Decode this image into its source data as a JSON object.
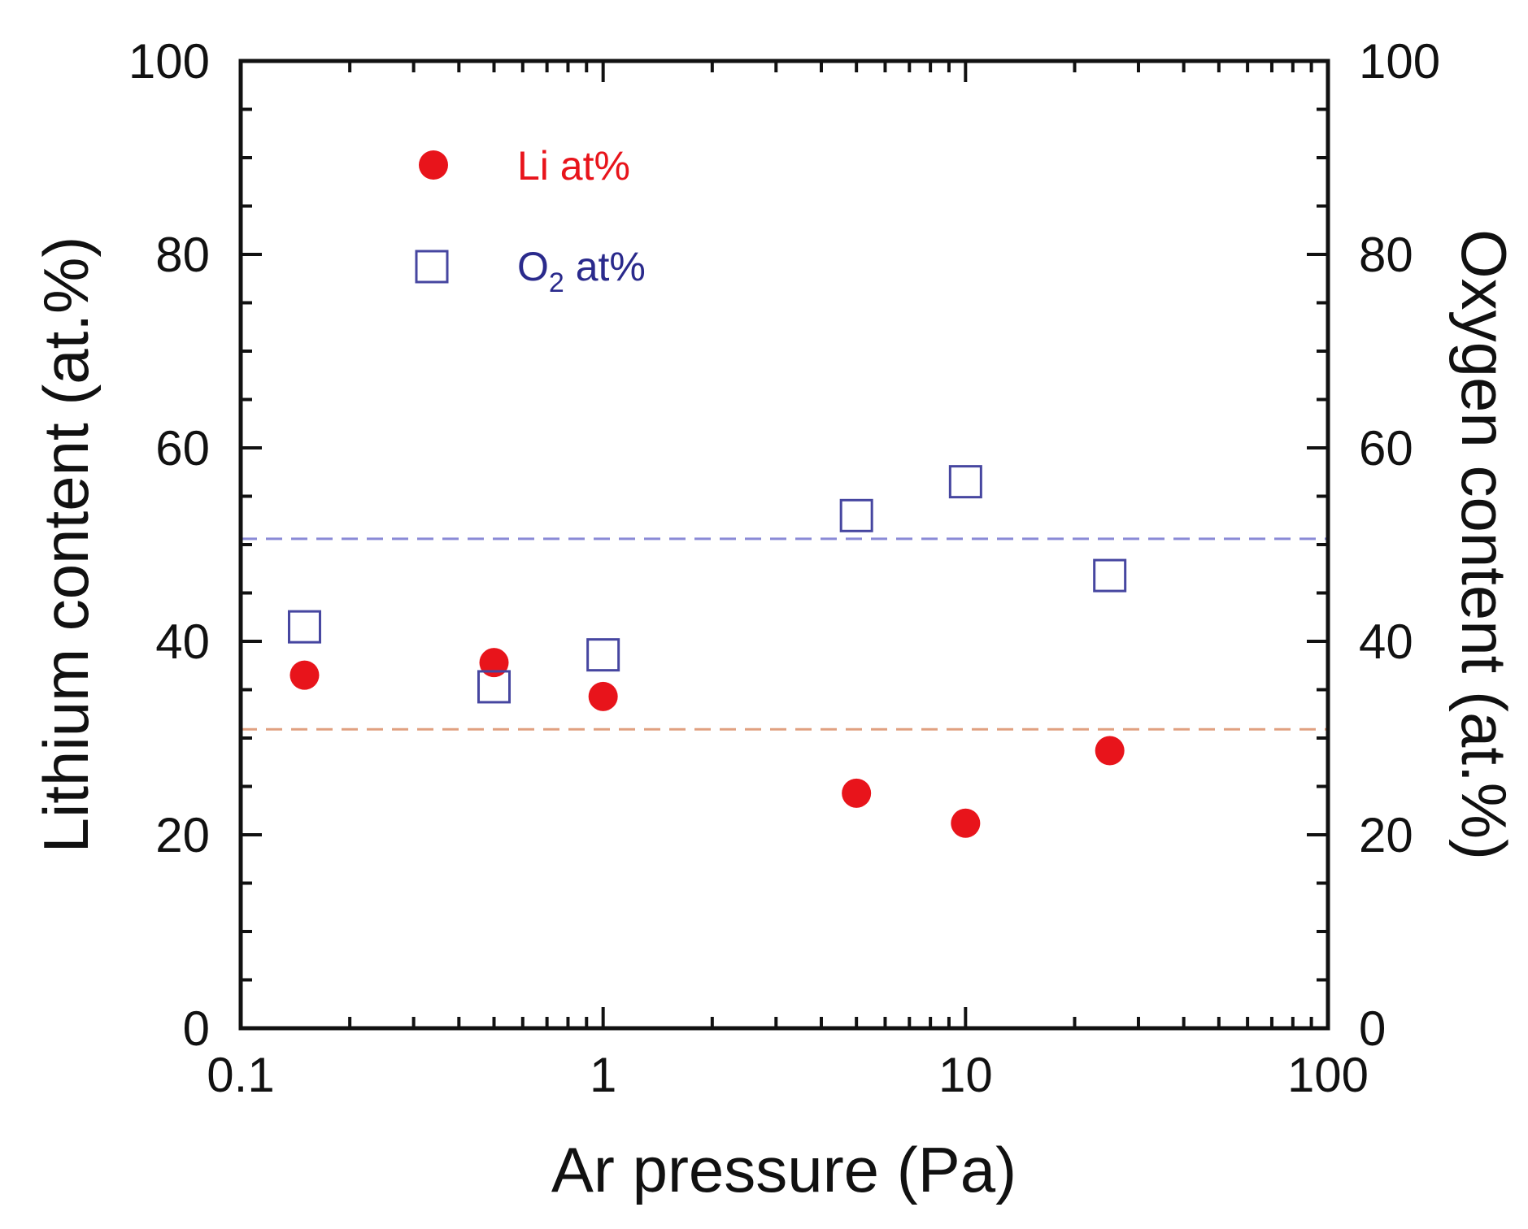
{
  "chart_data": {
    "type": "scatter",
    "title": "",
    "xlabel": "Ar pressure (Pa)",
    "ylabel": "Lithium content  (at.%)",
    "y2label": "Oxygen content  (at.%)",
    "xscale": "log",
    "xlim": [
      0.1,
      100
    ],
    "ylim": [
      0,
      100
    ],
    "y2lim": [
      0,
      100
    ],
    "x_ticks": [
      "0.1",
      "1",
      "10",
      "100"
    ],
    "y_ticks": [
      "0",
      "20",
      "40",
      "60",
      "80",
      "100"
    ],
    "y2_ticks": [
      "0",
      "20",
      "40",
      "60",
      "80",
      "100"
    ],
    "grid": false,
    "legend_position": "top-left",
    "series": [
      {
        "name": "Li at%",
        "marker": "filled-circle",
        "color": "#e8141b",
        "axis": "left",
        "x": [
          0.15,
          0.5,
          1,
          5,
          10,
          25
        ],
        "y": [
          36.5,
          37.8,
          34.3,
          24.3,
          21.2,
          28.7
        ]
      },
      {
        "name": "O2 at%",
        "legend_main": "O",
        "legend_sub": "2",
        "legend_rest": " at%",
        "marker": "open-square",
        "color": "#4646a0",
        "axis": "right",
        "x": [
          0.15,
          0.5,
          1,
          5,
          10,
          25
        ],
        "y": [
          41.5,
          35.3,
          38.6,
          53.0,
          56.5,
          46.8
        ]
      }
    ],
    "reference_lines": [
      {
        "name": "oxygen-reference",
        "y": 50.6,
        "color": "#8a8ad6"
      },
      {
        "name": "lithium-reference",
        "y": 30.9,
        "color": "#e0a080"
      }
    ]
  }
}
